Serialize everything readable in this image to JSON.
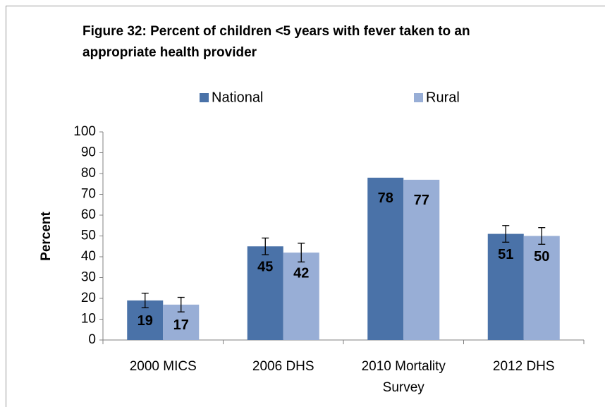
{
  "chart_data": {
    "type": "bar",
    "title": "Figure 32: Percent of children <5 years with fever taken to an appropriate health provider",
    "y_label": "Percent",
    "categories": [
      "2000 MICS",
      "2006 DHS",
      "2010 Mortality Survey",
      "2012 DHS"
    ],
    "series": [
      {
        "name": "National",
        "color": "#4a72a8",
        "values": [
          19,
          45,
          78,
          51
        ],
        "errors": [
          3.5,
          4,
          null,
          4
        ]
      },
      {
        "name": "Rural",
        "color": "#98aed6",
        "values": [
          17,
          42,
          77,
          50
        ],
        "errors": [
          3.5,
          4.5,
          null,
          4
        ]
      }
    ],
    "ylim": [
      0,
      100
    ],
    "yticks": [
      0,
      10,
      20,
      30,
      40,
      50,
      60,
      70,
      80,
      90,
      100
    ],
    "legend": "top"
  }
}
